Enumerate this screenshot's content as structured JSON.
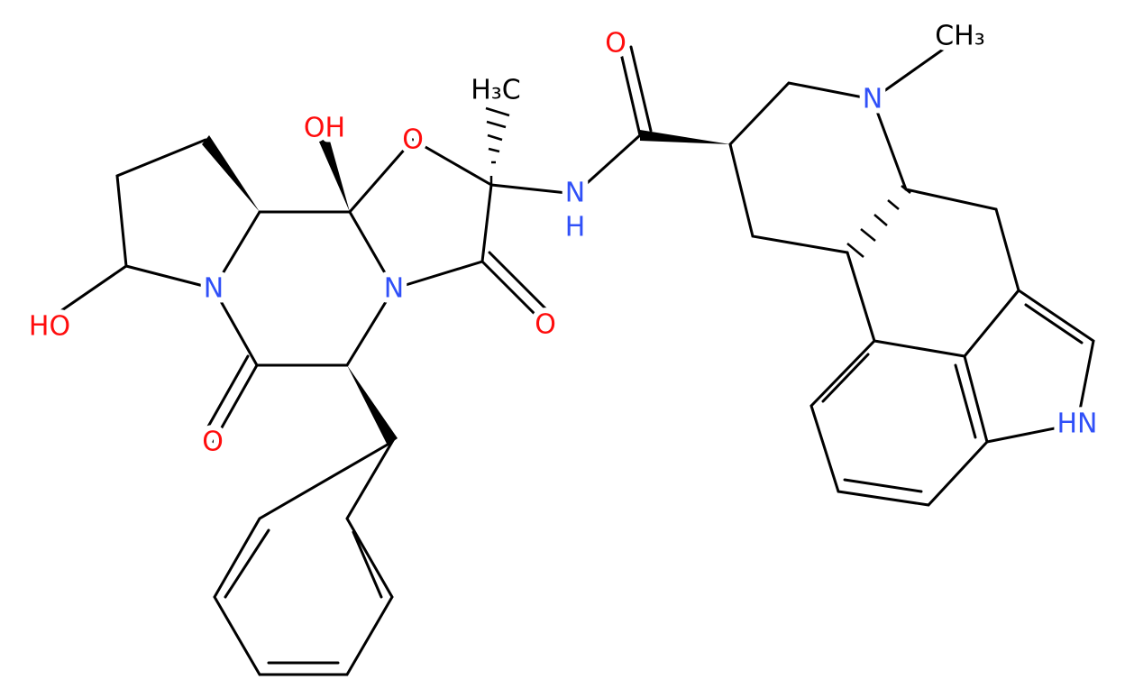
{
  "labels": [
    "O",
    "CH₃",
    "N",
    "H₃C",
    "OH",
    "O",
    "N",
    "H",
    "N",
    "N",
    "O",
    "HO",
    "O",
    "HN"
  ]
}
